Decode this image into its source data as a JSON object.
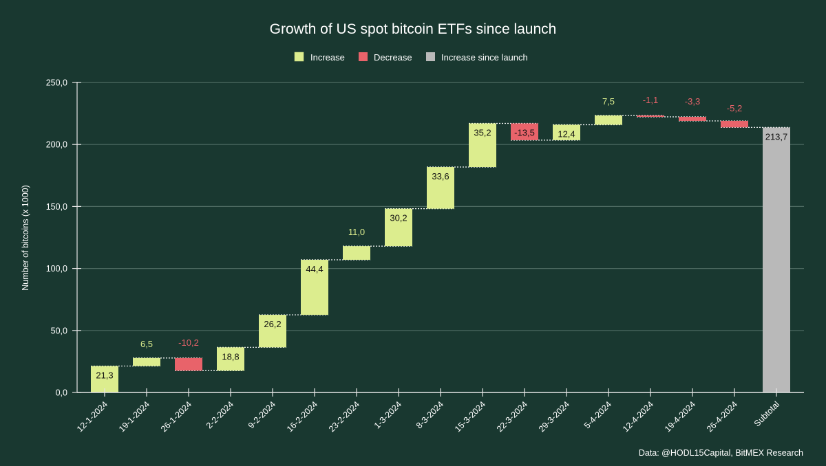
{
  "colors": {
    "background": "#193830",
    "increase": "#dced8e",
    "decrease": "#e8636a",
    "subtotal": "#b9b9b9",
    "grid": "#4e6b62",
    "axis": "#e6e6e6",
    "connector": "#ffffff"
  },
  "chart_data": {
    "type": "waterfall",
    "title": "Growth of US spot bitcoin ETFs since launch",
    "xlabel": "",
    "ylabel": "Number of bitcoins (x 1000)",
    "ylim": [
      0,
      250
    ],
    "yticks": [
      0,
      50,
      100,
      150,
      200,
      250
    ],
    "ytick_labels": [
      "0,0",
      "50,0",
      "100,0",
      "150,0",
      "200,0",
      "250,0"
    ],
    "grid": true,
    "legend": {
      "placement": "top-center",
      "entries": [
        {
          "label": "Increase",
          "key": "increase"
        },
        {
          "label": "Decrease",
          "key": "decrease"
        },
        {
          "label": "Increase since launch",
          "key": "subtotal"
        }
      ]
    },
    "categories": [
      "12-1-2024",
      "19-1-2024",
      "26-1-2024",
      "2-2-2024",
      "9-2-2024",
      "16-2-2024",
      "23-2-2024",
      "1-3-2024",
      "8-3-2024",
      "15-3-2024",
      "22-3-2024",
      "29-3-2024",
      "5-4-2024",
      "12-4-2024",
      "19-4-2024",
      "26-4-2024",
      "Subtotal"
    ],
    "values": [
      21.3,
      6.5,
      -10.2,
      18.8,
      26.2,
      44.4,
      11.0,
      30.2,
      33.6,
      35.2,
      -13.5,
      12.4,
      7.5,
      -1.1,
      -3.3,
      -5.2,
      213.7
    ],
    "value_labels": [
      "21,3",
      "6,5",
      "-10,2",
      "18,8",
      "26,2",
      "44,4",
      "11,0",
      "30,2",
      "33,6",
      "35,2",
      "-13,5",
      "12,4",
      "7,5",
      "-1,1",
      "-3,3",
      "-5,2",
      "213,7"
    ],
    "subtotal_index": 16,
    "source": "Data: @HODL15Capital, BitMEX Research"
  }
}
